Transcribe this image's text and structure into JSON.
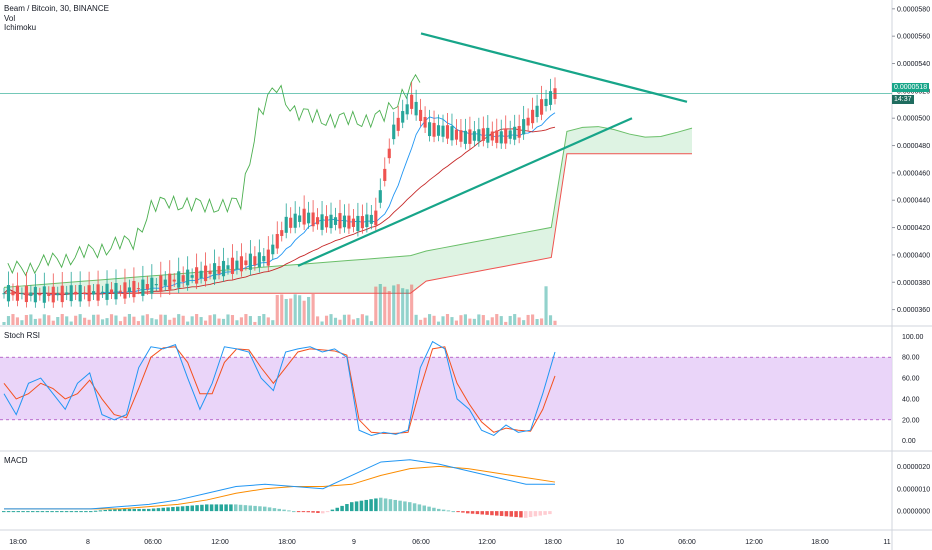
{
  "legend": {
    "symbol": "Beam / Bitcoin, 30, BINANCE",
    "volume": "Vol",
    "indicator": "Ichimoku"
  },
  "panes": {
    "stoch_label": "Stoch RSI",
    "macd_label": "MACD"
  },
  "price_tag": {
    "value": "0.0000518",
    "countdown": "14:37"
  },
  "colors": {
    "up": "#26a69a",
    "down": "#ef5350",
    "trendline": "#17a589",
    "cloud": "#d6f0dc",
    "stoch_k": "#2196f3",
    "stoch_d": "#f4511e",
    "stoch_band": "#e5cbf8",
    "leading_a": "#6abf69",
    "leading_b": "#ef5350",
    "lagging": "#4caf50",
    "tenkan": "#2196f3",
    "kijun": "#c62828",
    "macd": "#2196f3",
    "signal": "#fb8c00"
  },
  "chart_data": [
    {
      "type": "line",
      "title": "Beam / Bitcoin, 30, BINANCE",
      "x_labels": [
        "18:00",
        "8",
        "06:00",
        "12:00",
        "18:00",
        "9",
        "06:00",
        "12:00",
        "18:00",
        "10",
        "06:00",
        "12:00",
        "18:00",
        "11"
      ],
      "y_ticks": [
        "0.0000360",
        "0.0000380",
        "0.0000400",
        "0.0000420",
        "0.0000440",
        "0.0000460",
        "0.0000480",
        "0.0000500",
        "0.0000520",
        "0.0000540",
        "0.0000560",
        "0.0000580"
      ],
      "ylim": [
        3.48e-05,
        5.85e-05
      ],
      "current_price": 5.18e-05,
      "price_series_close": [
        3.72e-05,
        3.71e-05,
        3.71e-05,
        3.72e-05,
        3.72e-05,
        3.73e-05,
        3.74e-05,
        3.76e-05,
        3.79e-05,
        3.82e-05,
        3.85e-05,
        3.88e-05,
        3.92e-05,
        3.95e-05,
        3.98e-05,
        4.22e-05,
        4.28e-05,
        4.24e-05,
        4.25e-05,
        4.23e-05,
        4.27e-05,
        4.9e-05,
        5.12e-05,
        4.92e-05,
        4.9e-05,
        4.86e-05,
        4.88e-05,
        4.86e-05,
        4.9e-05,
        5.05e-05,
        5.18e-05
      ],
      "trendlines": [
        {
          "name": "upper",
          "from": [
            5.62e-05
          ],
          "to": [
            5.12e-05
          ]
        },
        {
          "name": "lower",
          "from": [
            3.92e-05
          ],
          "to": [
            5e-05
          ]
        }
      ]
    },
    {
      "type": "line",
      "title": "Stoch RSI",
      "y_ticks": [
        "0.00",
        "20.00",
        "40.00",
        "60.00",
        "80.00",
        "100.00"
      ],
      "ylim": [
        -8,
        108
      ],
      "band": [
        20,
        80
      ],
      "series": [
        {
          "name": "K",
          "values": [
            45,
            25,
            55,
            60,
            45,
            30,
            55,
            65,
            25,
            20,
            25,
            70,
            90,
            88,
            92,
            60,
            30,
            55,
            90,
            88,
            85,
            60,
            48,
            85,
            88,
            90,
            85,
            88,
            80,
            10,
            5,
            8,
            6,
            10,
            70,
            95,
            88,
            40,
            30,
            10,
            5,
            15,
            8,
            10,
            45,
            85
          ]
        },
        {
          "name": "D",
          "values": [
            55,
            40,
            45,
            55,
            50,
            40,
            45,
            58,
            40,
            25,
            22,
            50,
            80,
            89,
            90,
            75,
            45,
            45,
            75,
            88,
            87,
            70,
            55,
            70,
            85,
            88,
            87,
            86,
            82,
            20,
            8,
            7,
            7,
            8,
            50,
            88,
            90,
            55,
            35,
            18,
            8,
            12,
            10,
            9,
            30,
            62
          ]
        }
      ]
    },
    {
      "type": "bar",
      "title": "MACD",
      "y_ticks": [
        "0.0000000",
        "0.0000010",
        "0.0000020"
      ],
      "ylim": [
        -8e-07,
        2.6e-06
      ],
      "series": [
        {
          "name": "MACD",
          "values": [
            1e-07,
            1e-07,
            1e-07,
            1e-07,
            2e-07,
            3e-07,
            5e-07,
            8e-07,
            1.1e-06,
            1.2e-06,
            1.1e-06,
            1e-06,
            1.6e-06,
            2.2e-06,
            2.3e-06,
            2.1e-06,
            1.8e-06,
            1.5e-06,
            1.2e-06,
            1.2e-06
          ]
        },
        {
          "name": "Signal",
          "values": [
            1e-07,
            1e-07,
            1e-07,
            1e-07,
            1e-07,
            2e-07,
            3e-07,
            5e-07,
            8e-07,
            1e-06,
            1.1e-06,
            1.1e-06,
            1.2e-06,
            1.6e-06,
            1.9e-06,
            2e-06,
            1.9e-06,
            1.7e-06,
            1.5e-06,
            1.3e-06
          ]
        },
        {
          "name": "Histogram",
          "values": [
            0.0,
            0.0,
            0.0,
            0.0,
            1e-07,
            1e-07,
            2e-07,
            3e-07,
            3e-07,
            2e-07,
            0.0,
            -1e-07,
            4e-07,
            6e-07,
            4e-07,
            1e-07,
            -1e-07,
            -2e-07,
            -3e-07,
            -1e-07
          ]
        }
      ]
    }
  ]
}
